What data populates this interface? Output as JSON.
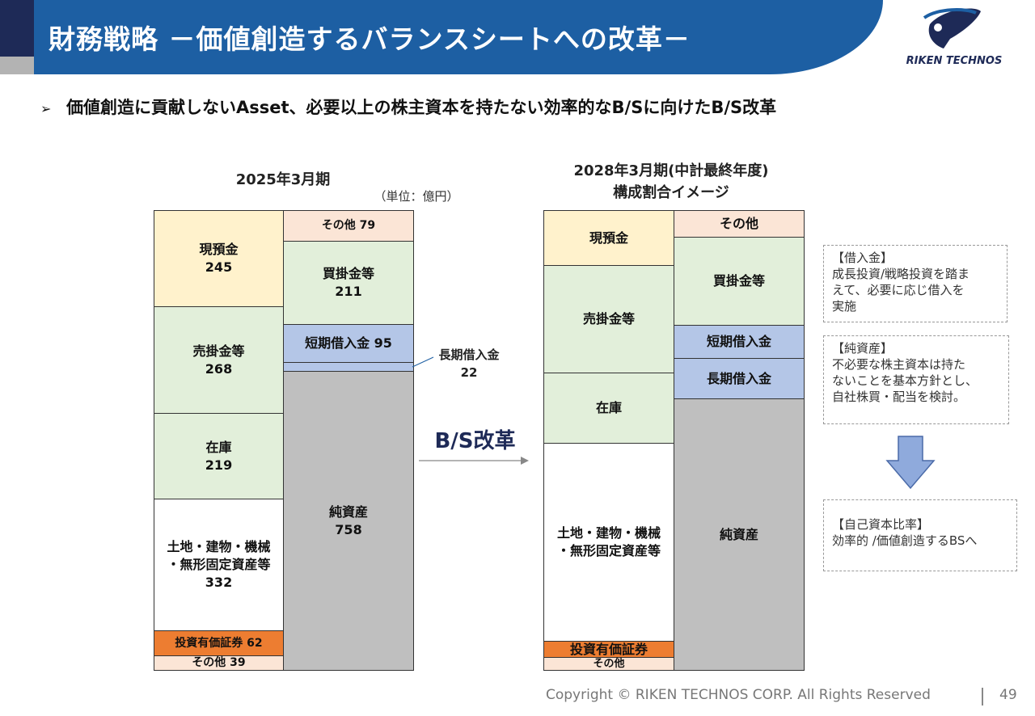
{
  "header": {
    "title": "財務戦略 －価値創造するバランスシートへの改革－",
    "logo_text": "RIKEN TECHNOS"
  },
  "subtitle": "価値創造に貢献しないAsset、必要以上の株主資本を持たない効率的なB/Sに向けたB/S改革",
  "bs2025": {
    "heading": "2025年3月期",
    "unit": "（単位：億円）",
    "assets": [
      {
        "label": "現預金",
        "value": "245"
      },
      {
        "label": "売掛金等",
        "value": "268"
      },
      {
        "label": "在庫",
        "value": "219"
      },
      {
        "label1": "土地・建物・機械",
        "label2": "・無形固定資産等",
        "value": "332"
      },
      {
        "label": "投資有価証券  62"
      },
      {
        "label": "その他  39"
      }
    ],
    "liabilities": [
      {
        "label": "その他  79"
      },
      {
        "label": "買掛金等",
        "value": "211"
      },
      {
        "label": "短期借入金  95"
      },
      {
        "label": "純資産",
        "value": "758"
      }
    ],
    "long_term_note": {
      "label": "長期借入金",
      "value": "22"
    }
  },
  "transition_label": "B/S改革",
  "bs2028": {
    "heading_line1": "2028年3月期(中計最終年度)",
    "heading_line2": "構成割合イメージ",
    "assets": [
      {
        "label": "現預金"
      },
      {
        "label": "売掛金等"
      },
      {
        "label": "在庫"
      },
      {
        "label1": "土地・建物・機械",
        "label2": "・無形固定資産等"
      },
      {
        "label": "投資有価証券"
      },
      {
        "label": "その他"
      }
    ],
    "liabilities": [
      {
        "label": "その他"
      },
      {
        "label": "買掛金等"
      },
      {
        "label": "短期借入金"
      },
      {
        "label": "長期借入金"
      },
      {
        "label": "純資産"
      }
    ]
  },
  "notes": [
    {
      "title": "【借入金】",
      "lines": [
        "成長投資/戦略投資を踏ま",
        "えて、必要に応じ借入を",
        "実施"
      ]
    },
    {
      "title": "【純資産】",
      "lines": [
        "不必要な株主資本は持た",
        "ないことを基本方針とし、",
        "自社株買・配当を検討。"
      ]
    },
    {
      "title": "【自己資本比率】",
      "lines": [
        "効率的 /価値創造するBSへ"
      ]
    }
  ],
  "footer": {
    "copyright": "Copyright © RIKEN TECHNOS CORP. All Rights Reserved",
    "page": "49"
  },
  "colors": {
    "header_blue": "#1d5fa3",
    "navy": "#1e2a57",
    "cash": "#fff2cc",
    "receivables": "#e2efda",
    "investments": "#ed7d31",
    "other": "#fbe5d6",
    "borrowings": "#b4c6e7",
    "net_assets": "#bfbfbf"
  }
}
